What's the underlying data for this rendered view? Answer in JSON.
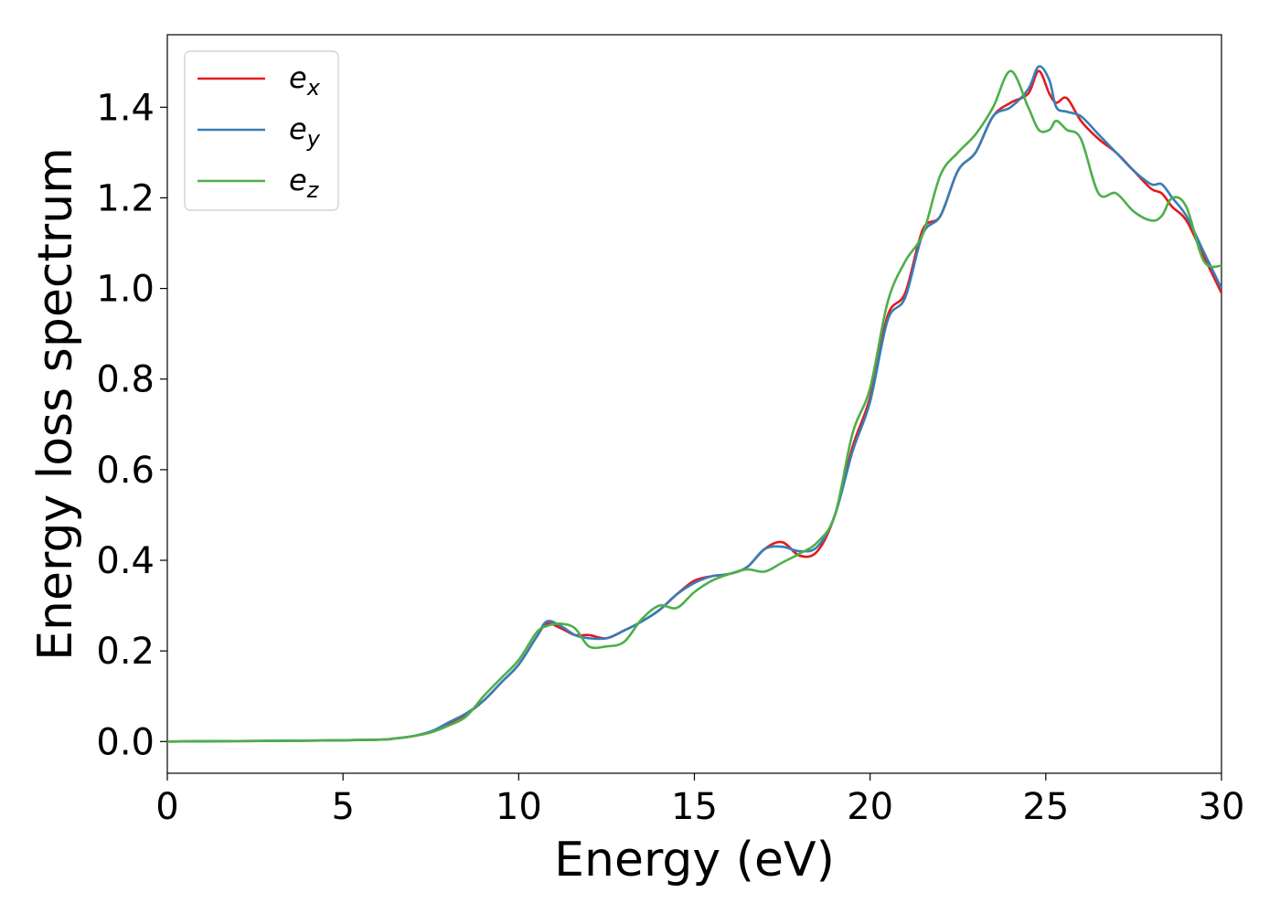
{
  "chart_data": {
    "type": "line",
    "title": "",
    "xlabel": "Energy (eV)",
    "ylabel": "Energy loss spectrum",
    "xlim": [
      0,
      30
    ],
    "ylim": [
      -0.07,
      1.56
    ],
    "xticks": [
      0,
      5,
      10,
      15,
      20,
      25,
      30
    ],
    "yticks": [
      0.0,
      0.2,
      0.4,
      0.6,
      0.8,
      1.0,
      1.2,
      1.4
    ],
    "xtick_labels": [
      "0",
      "5",
      "10",
      "15",
      "20",
      "25",
      "30"
    ],
    "ytick_labels": [
      "0.0",
      "0.2",
      "0.4",
      "0.6",
      "0.8",
      "1.0",
      "1.2",
      "1.4"
    ],
    "grid": false,
    "legend_position": "upper-left",
    "series": [
      {
        "name": "e_x",
        "label_base": "e",
        "label_sub": "x",
        "color": "#e41a1c",
        "x": [
          0,
          2,
          4,
          6,
          6.5,
          7,
          7.5,
          8,
          8.5,
          9,
          9.5,
          10,
          10.5,
          10.8,
          11.2,
          11.6,
          12,
          12.5,
          13,
          13.5,
          14,
          14.5,
          15,
          15.5,
          16,
          16.5,
          17,
          17.5,
          18,
          18.5,
          19,
          19.5,
          20,
          20.5,
          21,
          21.5,
          22,
          22.5,
          23,
          23.5,
          24,
          24.5,
          24.8,
          25.1,
          25.3,
          25.6,
          26,
          26.5,
          27,
          27.5,
          28,
          28.3,
          28.6,
          29,
          29.5,
          30
        ],
        "y": [
          0.0,
          0.001,
          0.002,
          0.004,
          0.007,
          0.012,
          0.022,
          0.04,
          0.06,
          0.09,
          0.13,
          0.17,
          0.23,
          0.26,
          0.25,
          0.235,
          0.235,
          0.228,
          0.245,
          0.265,
          0.29,
          0.325,
          0.355,
          0.365,
          0.37,
          0.385,
          0.425,
          0.44,
          0.41,
          0.42,
          0.5,
          0.65,
          0.76,
          0.94,
          0.99,
          1.13,
          1.16,
          1.26,
          1.3,
          1.38,
          1.41,
          1.43,
          1.48,
          1.43,
          1.41,
          1.42,
          1.37,
          1.33,
          1.3,
          1.26,
          1.22,
          1.21,
          1.18,
          1.15,
          1.07,
          0.99
        ]
      },
      {
        "name": "e_y",
        "label_base": "e",
        "label_sub": "y",
        "color": "#377eb8",
        "x": [
          0,
          2,
          4,
          6,
          6.5,
          7,
          7.5,
          8,
          8.5,
          9,
          9.5,
          10,
          10.5,
          10.8,
          11.2,
          11.6,
          12,
          12.5,
          13,
          13.5,
          14,
          14.5,
          15,
          15.5,
          16,
          16.5,
          17,
          17.5,
          18,
          18.5,
          19,
          19.5,
          20,
          20.5,
          21,
          21.5,
          22,
          22.5,
          23,
          23.5,
          24,
          24.5,
          24.8,
          25.1,
          25.3,
          25.6,
          26,
          26.5,
          27,
          27.5,
          28,
          28.3,
          28.6,
          29,
          29.5,
          30
        ],
        "y": [
          0.0,
          0.001,
          0.002,
          0.004,
          0.007,
          0.012,
          0.022,
          0.042,
          0.062,
          0.09,
          0.13,
          0.17,
          0.23,
          0.265,
          0.255,
          0.235,
          0.228,
          0.228,
          0.245,
          0.265,
          0.29,
          0.325,
          0.35,
          0.365,
          0.37,
          0.385,
          0.425,
          0.43,
          0.42,
          0.43,
          0.5,
          0.64,
          0.75,
          0.93,
          0.98,
          1.12,
          1.16,
          1.26,
          1.3,
          1.38,
          1.4,
          1.44,
          1.49,
          1.46,
          1.4,
          1.39,
          1.38,
          1.34,
          1.3,
          1.26,
          1.23,
          1.23,
          1.2,
          1.16,
          1.08,
          1.0
        ]
      },
      {
        "name": "e_z",
        "label_base": "e",
        "label_sub": "z",
        "color": "#4daf4a",
        "x": [
          0,
          2,
          4,
          6,
          6.5,
          7,
          7.5,
          8,
          8.5,
          9,
          9.5,
          10,
          10.5,
          10.8,
          11.2,
          11.6,
          12,
          12.5,
          13,
          13.5,
          14,
          14.5,
          15,
          15.5,
          16,
          16.5,
          17,
          17.5,
          18,
          18.5,
          19,
          19.5,
          20,
          20.5,
          21,
          21.5,
          22,
          22.5,
          23,
          23.5,
          24,
          24.5,
          24.8,
          25.1,
          25.3,
          25.6,
          26,
          26.5,
          27,
          27.5,
          28,
          28.3,
          28.6,
          29,
          29.5,
          30
        ],
        "y": [
          0.0,
          0.001,
          0.002,
          0.004,
          0.007,
          0.012,
          0.02,
          0.035,
          0.055,
          0.1,
          0.14,
          0.18,
          0.24,
          0.255,
          0.26,
          0.25,
          0.21,
          0.21,
          0.22,
          0.27,
          0.3,
          0.295,
          0.33,
          0.355,
          0.37,
          0.38,
          0.375,
          0.395,
          0.415,
          0.44,
          0.5,
          0.68,
          0.78,
          0.97,
          1.06,
          1.12,
          1.25,
          1.3,
          1.34,
          1.4,
          1.48,
          1.4,
          1.35,
          1.35,
          1.37,
          1.35,
          1.33,
          1.21,
          1.21,
          1.17,
          1.15,
          1.16,
          1.2,
          1.18,
          1.06,
          1.05
        ]
      }
    ]
  }
}
